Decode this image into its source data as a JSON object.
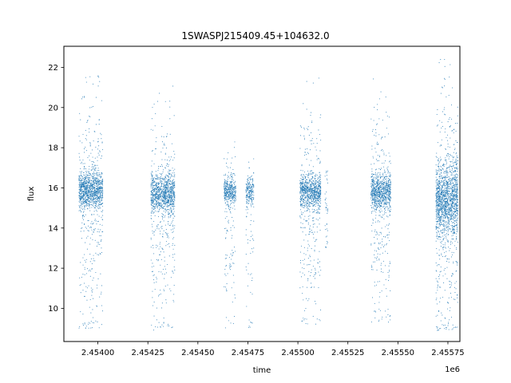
{
  "chart_data": {
    "type": "scatter",
    "title": "1SWASPJ215409.45+104632.0",
    "xlabel": "time",
    "ylabel": "flux",
    "x_offset_label": "1e6",
    "xlim": [
      2453830,
      2455810
    ],
    "ylim": [
      8.35,
      23.05
    ],
    "x_ticks": [
      2454000,
      2454250,
      2454500,
      2454750,
      2455000,
      2455250,
      2455500,
      2455750
    ],
    "x_tick_labels": [
      "2.45400",
      "2.45425",
      "2.45450",
      "2.45475",
      "2.45500",
      "2.45525",
      "2.45550",
      "2.45575"
    ],
    "y_ticks": [
      10,
      12,
      14,
      16,
      18,
      20,
      22
    ],
    "y_tick_labels": [
      "10",
      "12",
      "14",
      "16",
      "18",
      "20",
      "22"
    ],
    "grid": false,
    "point_color": "#1f77b4",
    "series": [
      {
        "clusters": [
          {
            "x_range": [
              2453905,
              2454025
            ],
            "center": 15.9,
            "spread": 0.45,
            "count": 1300,
            "min": 9.0,
            "max": 21.6
          },
          {
            "x_range": [
              2454265,
              2454385
            ],
            "center": 15.7,
            "spread": 0.5,
            "count": 1200,
            "min": 8.9,
            "max": 21.2
          },
          {
            "x_range": [
              2454630,
              2454690
            ],
            "center": 15.8,
            "spread": 0.35,
            "count": 450,
            "min": 9.0,
            "max": 18.4
          },
          {
            "x_range": [
              2454740,
              2454780
            ],
            "center": 15.8,
            "spread": 0.35,
            "count": 250,
            "min": 9.0,
            "max": 17.9
          },
          {
            "x_range": [
              2455010,
              2455115
            ],
            "center": 15.8,
            "spread": 0.4,
            "count": 1000,
            "min": 9.2,
            "max": 21.7
          },
          {
            "x_range": [
              2455135,
              2455150
            ],
            "center": 15.2,
            "spread": 1.5,
            "count": 40,
            "min": 13.0,
            "max": 17.0
          },
          {
            "x_range": [
              2455365,
              2455465
            ],
            "center": 15.8,
            "spread": 0.45,
            "count": 1000,
            "min": 9.3,
            "max": 21.6
          },
          {
            "x_range": [
              2455690,
              2455800
            ],
            "center": 15.4,
            "spread": 0.9,
            "count": 1700,
            "min": 8.9,
            "max": 22.4
          }
        ]
      }
    ]
  }
}
